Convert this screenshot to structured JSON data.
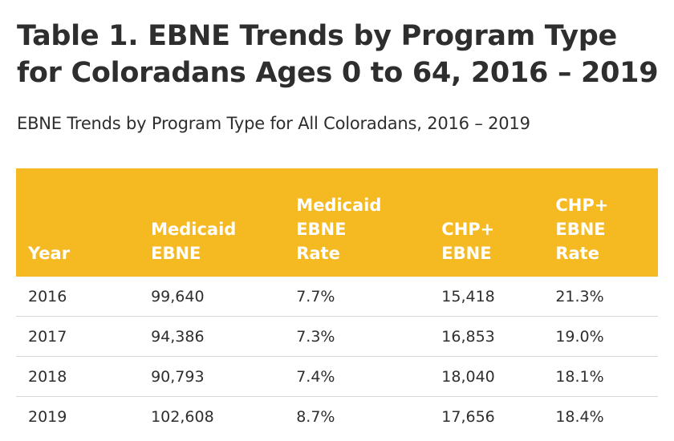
{
  "title_line1": "Table 1. EBNE Trends by Program Type",
  "title_line2": "for Coloradans Ages 0 to 64, 2016 – 2019",
  "subtitle": "EBNE Trends by Program Type for All Coloradans, 2016 – 2019",
  "header_color": "#f5b922",
  "columns": [
    "Year",
    "Medicaid\nEBNE",
    "Medicaid\nEBNE\nRate",
    "CHP+\nEBNE",
    "CHP+\nEBNE\nRate"
  ],
  "rows": [
    [
      "2016",
      "99,640",
      "7.7%",
      "15,418",
      "21.3%"
    ],
    [
      "2017",
      "94,386",
      "7.3%",
      "16,853",
      "19.0%"
    ],
    [
      "2018",
      "90,793",
      "7.4%",
      "18,040",
      "18.1%"
    ],
    [
      "2019",
      "102,608",
      "8.7%",
      "17,656",
      "18.4%"
    ]
  ]
}
